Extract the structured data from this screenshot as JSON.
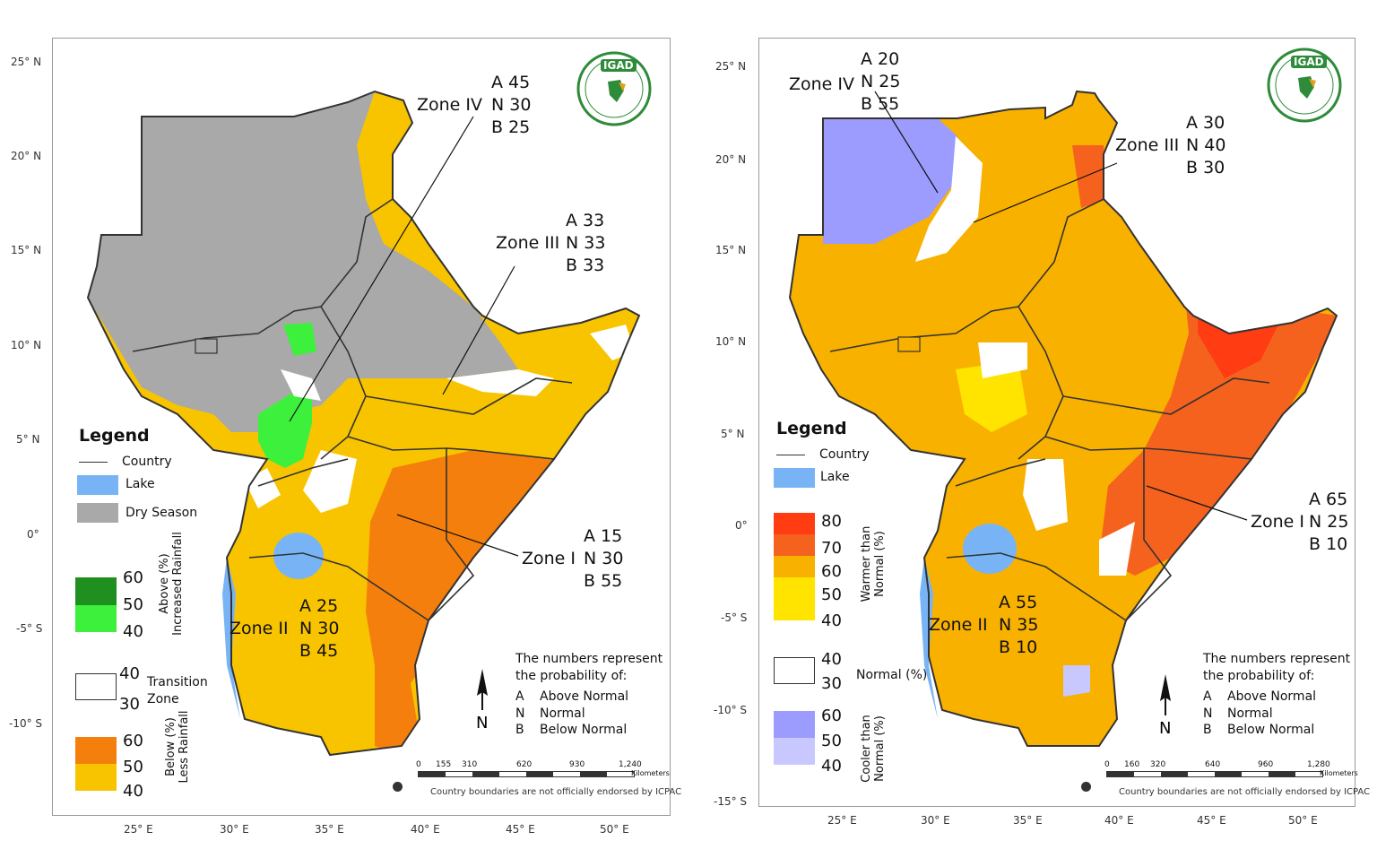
{
  "panels": [
    {
      "id": "rainfall",
      "lat_labels": [
        "25° N",
        "20° N",
        "15° N",
        "10° N",
        "5° N",
        "0°",
        "-5° S",
        "-10° S"
      ],
      "lon_labels": [
        "25° E",
        "30° E",
        "35° E",
        "40° E",
        "45° E",
        "50° E"
      ],
      "legend": {
        "title": "Legend",
        "country": "Country",
        "lake": "Lake",
        "dry_season": "Dry Season",
        "above": {
          "values": [
            "60",
            "50",
            "40"
          ],
          "label": "Above (%)\nIncreased Rainfall"
        },
        "transition": {
          "values": [
            "40",
            "30"
          ],
          "label": "Transition\nZone"
        },
        "below": {
          "values": [
            "60",
            "50",
            "40"
          ],
          "label": "Below (%)\nLess Rainfall"
        }
      },
      "zones": [
        {
          "name": "Zone IV",
          "A": "A 45",
          "N": "N 30",
          "B": "B 25"
        },
        {
          "name": "Zone III",
          "A": "A 33",
          "N": "N 33",
          "B": "B 33"
        },
        {
          "name": "Zone I",
          "A": "A 15",
          "N": "N 30",
          "B": "B 55"
        },
        {
          "name": "Zone II",
          "A": "A 25",
          "N": "N 30",
          "B": "B 45"
        }
      ],
      "note": {
        "header1": "The numbers represent",
        "header2": "the probability of:",
        "rows": [
          [
            "A",
            "Above Normal"
          ],
          [
            "N",
            "Normal"
          ],
          [
            "B",
            "Below Normal"
          ]
        ]
      },
      "scale": {
        "ticks": [
          "0",
          "155",
          "310",
          "620",
          "930",
          "1,240"
        ],
        "unit": "Kilometers"
      },
      "disclaimer": "Country boundaries are not officially endorsed by ICPAC",
      "logo_text": "IGAD"
    },
    {
      "id": "temperature",
      "lat_labels": [
        "25° N",
        "20° N",
        "15° N",
        "10° N",
        "5° N",
        "0°",
        "-5° S",
        "-10° S",
        "-15° S"
      ],
      "lon_labels": [
        "25° E",
        "30° E",
        "35° E",
        "40° E",
        "45° E",
        "50° E"
      ],
      "legend": {
        "title": "Legend",
        "country": "Country",
        "lake": "Lake",
        "warmer": {
          "values": [
            "80",
            "70",
            "60",
            "50",
            "40"
          ],
          "label": "Warmer than\nNormal (%)"
        },
        "normal": {
          "values": [
            "40",
            "30"
          ],
          "label": "Normal (%)"
        },
        "cooler": {
          "values": [
            "60",
            "50",
            "40"
          ],
          "label": "Cooler than\nNormal (%)"
        }
      },
      "zones": [
        {
          "name": "Zone IV",
          "A": "A 20",
          "N": "N 25",
          "B": "B 55"
        },
        {
          "name": "Zone III",
          "A": "A 30",
          "N": "N 40",
          "B": "B 30"
        },
        {
          "name": "Zone I",
          "A": "A 65",
          "N": "N 25",
          "B": "B 10"
        },
        {
          "name": "Zone II",
          "A": "A 55",
          "N": "N 35",
          "B": "B 10"
        }
      ],
      "note": {
        "header1": "The numbers represent",
        "header2": "the probability of:",
        "rows": [
          [
            "A",
            "Above Normal"
          ],
          [
            "N",
            "Normal"
          ],
          [
            "B",
            "Below Normal"
          ]
        ]
      },
      "scale": {
        "ticks": [
          "0",
          "160",
          "320",
          "640",
          "960",
          "1,280"
        ],
        "unit": "Kilometers"
      },
      "disclaimer": "Country boundaries are not officially endorsed by ICPAC",
      "logo_text": "IGAD"
    }
  ],
  "colors": {
    "dry": "#a9a9a9",
    "green_hi": "#1f8f1f",
    "green_lo": "#3cf03c",
    "orange": "#f57f0c",
    "yellow": "#f8c400",
    "yellow_lt": "#ffe400",
    "red80": "#ff3c12",
    "red70": "#f5621e",
    "orange60": "#f9b100",
    "blue60": "#9c9cff",
    "blue50": "#c8c8ff",
    "lake": "#78b4f5",
    "border": "#333333"
  }
}
